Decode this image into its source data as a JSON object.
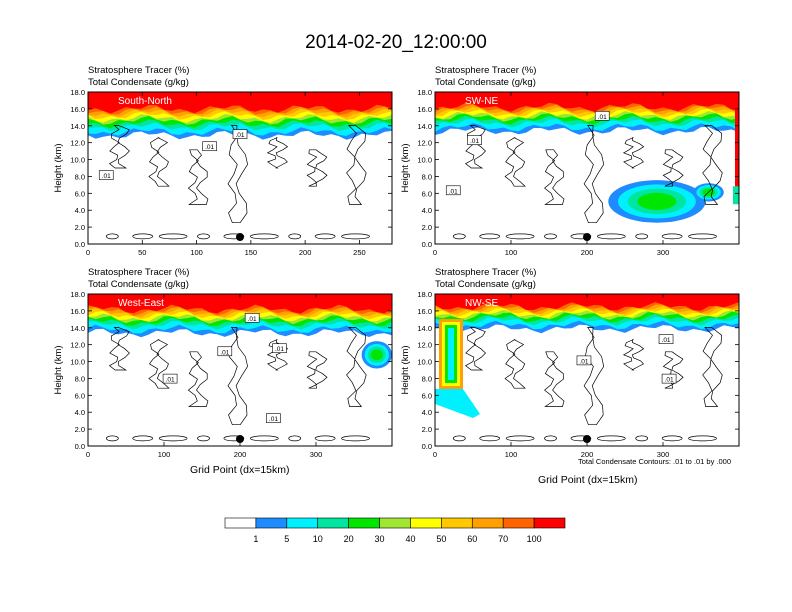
{
  "title": "2014-02-20_12:00:00",
  "footnote": "Total Condensate Contours: .01 to .01 by .000",
  "colorbar": {
    "colors": [
      "#ffffff",
      "#1e8cff",
      "#00f0ff",
      "#00e6a0",
      "#00e600",
      "#a0e632",
      "#ffff00",
      "#ffc800",
      "#ffa000",
      "#ff6400",
      "#ff0000"
    ],
    "labels": [
      "1",
      "5",
      "10",
      "20",
      "30",
      "40",
      "50",
      "60",
      "70",
      "100"
    ]
  },
  "chart_data": [
    {
      "type": "heatmap",
      "subtitle_lines": [
        "Stratosphere Tracer   (%)",
        "Total Condensate   (g/kg)"
      ],
      "panel_label": "South-North",
      "ylabel": "Height (km)",
      "xlabel": "",
      "xlim": [
        0,
        280
      ],
      "ylim": [
        0,
        18
      ],
      "xticks": [
        "0",
        "50",
        "100",
        "150",
        "200",
        "250"
      ],
      "yticks": [
        "0.0",
        "2.0",
        "4.0",
        "6.0",
        "8.0",
        "10.0",
        "12.0",
        "14.0",
        "16.0",
        "18.0"
      ],
      "contour_labels": [
        ".01",
        ".01",
        ".01"
      ],
      "marker_x": 140,
      "tracer_top_km": 16.0,
      "tracer_base_km": 13.5
    },
    {
      "type": "heatmap",
      "subtitle_lines": [
        "Stratosphere Tracer   (%)",
        "Total Condensate   (g/kg)"
      ],
      "panel_label": "SW-NE",
      "ylabel": "Height (km)",
      "xlabel": "",
      "xlim": [
        0,
        400
      ],
      "ylim": [
        0,
        18
      ],
      "xticks": [
        "0",
        "100",
        "200",
        "300"
      ],
      "yticks": [
        "0.0",
        "2.0",
        "4.0",
        "6.0",
        "8.0",
        "10.0",
        "12.0",
        "14.0",
        "16.0",
        "18.0"
      ],
      "contour_labels": [
        ".01",
        ".01",
        ".01"
      ],
      "marker_x": 200,
      "tracer_top_km": 16.2,
      "tracer_base_km": 14.0
    },
    {
      "type": "heatmap",
      "subtitle_lines": [
        "Stratosphere Tracer   (%)",
        "Total Condensate   (g/kg)"
      ],
      "panel_label": "West-East",
      "ylabel": "Height (km)",
      "xlabel": "Grid Point (dx=15km)",
      "xlim": [
        0,
        400
      ],
      "ylim": [
        0,
        18
      ],
      "xticks": [
        "0",
        "100",
        "200",
        "300"
      ],
      "yticks": [
        "0.0",
        "2.0",
        "4.0",
        "6.0",
        "8.0",
        "10.0",
        "12.0",
        "14.0",
        "16.0",
        "18.0"
      ],
      "contour_labels": [
        ".01",
        ".01",
        ".01",
        ".01",
        ".01"
      ],
      "marker_x": 200,
      "tracer_top_km": 16.2,
      "tracer_base_km": 14.0
    },
    {
      "type": "heatmap",
      "subtitle_lines": [
        "Stratosphere Tracer   (%)",
        "Total Condensate   (g/kg)"
      ],
      "panel_label": "NW-SE",
      "ylabel": "Height (km)",
      "xlabel": "Grid Point (dx=15km)",
      "xlim": [
        0,
        400
      ],
      "ylim": [
        0,
        18
      ],
      "xticks": [
        "0",
        "100",
        "200",
        "300"
      ],
      "yticks": [
        "0.0",
        "2.0",
        "4.0",
        "6.0",
        "8.0",
        "10.0",
        "12.0",
        "14.0",
        "16.0",
        "18.0"
      ],
      "contour_labels": [
        ".01",
        ".01",
        ".01"
      ],
      "marker_x": 200,
      "tracer_top_km": 16.5,
      "tracer_base_km": 14.5
    }
  ]
}
